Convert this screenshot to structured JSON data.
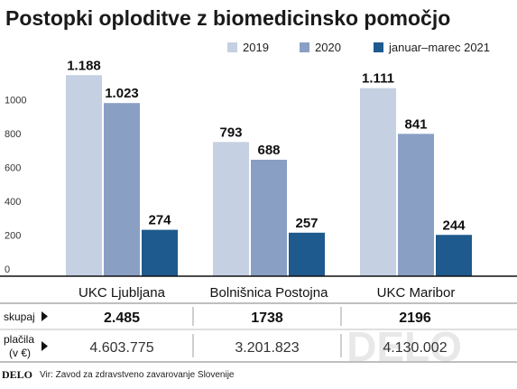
{
  "chart_data": {
    "type": "bar",
    "title": "Postopki oploditve z biomedicinsko pomočjo",
    "categories": [
      "UKC Ljubljana",
      "Bolnišnica Postojna",
      "UKC Maribor"
    ],
    "series": [
      {
        "name": "2019",
        "values": [
          1188,
          793,
          1111
        ],
        "labels": [
          "1.188",
          "793",
          "1.111"
        ],
        "color": "#c5d0e2"
      },
      {
        "name": "2020",
        "values": [
          1023,
          688,
          841
        ],
        "labels": [
          "1.023",
          "688",
          "841"
        ],
        "color": "#8a9fc4"
      },
      {
        "name": "januar–marec 2021",
        "values": [
          274,
          257,
          244
        ],
        "labels": [
          "274",
          "257",
          "244"
        ],
        "color": "#1e5a8e"
      }
    ],
    "yticks": [
      "0",
      "200",
      "400",
      "600",
      "800",
      "1000"
    ],
    "ylim": [
      0,
      1200
    ],
    "grid": false,
    "legend": "top-right"
  },
  "table": {
    "sum_label": "skupaj",
    "sum_values": [
      "2.485",
      "1738",
      "2196"
    ],
    "pay_label_line1": "plačila",
    "pay_label_line2": "(v €)",
    "pay_values": [
      "4.603.775",
      "3.201.823",
      "4.130.002"
    ]
  },
  "footer": {
    "logo": "DELO",
    "source": "Vir: Zavod za zdravstveno zavarovanje Slovenije",
    "watermark": "DELO"
  }
}
